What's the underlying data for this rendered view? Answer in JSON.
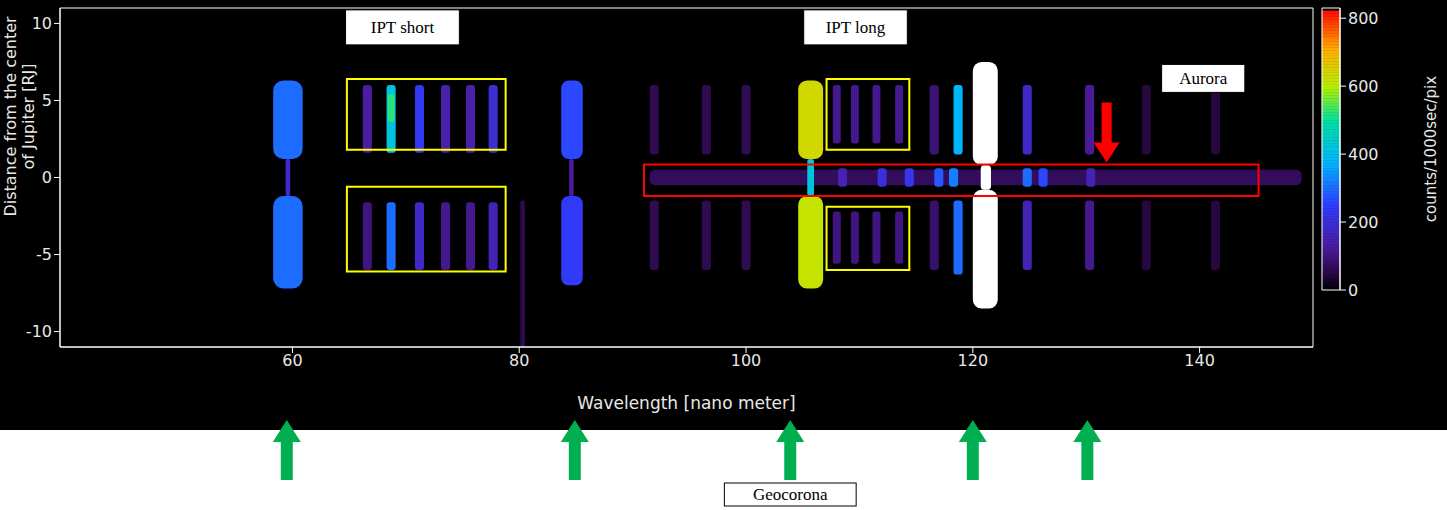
{
  "chart_data": {
    "type": "heatmap",
    "x_label": "Wavelength [nano meter]",
    "y_label": "Distance from the center of Jupiter [RJ]",
    "xlim": [
      39.5,
      150
    ],
    "xticks": [
      60,
      80,
      100,
      120,
      140
    ],
    "ylim": [
      -11,
      11
    ],
    "yticks": [
      -10,
      -5,
      0,
      5,
      10
    ],
    "colorbar": {
      "label": "counts/1000sec/pix",
      "range": [
        0,
        830
      ],
      "ticks": [
        0,
        200,
        400,
        600,
        800
      ]
    },
    "cells": [
      {
        "x": [
          91.5,
          149.0
        ],
        "y": [
          -0.5,
          0.5
        ],
        "value": 70
      },
      {
        "x": [
          58.3,
          60.9
        ],
        "y": [
          1.2,
          6.3
        ],
        "value": 300
      },
      {
        "x": [
          58.3,
          60.9
        ],
        "y": [
          -7.2,
          -1.2
        ],
        "value": 300
      },
      {
        "x": [
          59.4,
          59.8
        ],
        "y": [
          -1.2,
          1.2
        ],
        "value": 180
      },
      {
        "x": [
          66.2,
          67.0
        ],
        "y": [
          1.6,
          6.0
        ],
        "value": 130
      },
      {
        "x": [
          68.3,
          69.1
        ],
        "y": [
          1.6,
          6.0
        ],
        "value": 420
      },
      {
        "x": [
          70.8,
          71.6
        ],
        "y": [
          1.6,
          6.0
        ],
        "value": 230
      },
      {
        "x": [
          73.1,
          73.9
        ],
        "y": [
          1.6,
          6.0
        ],
        "value": 140
      },
      {
        "x": [
          75.3,
          76.1
        ],
        "y": [
          1.6,
          6.0
        ],
        "value": 140
      },
      {
        "x": [
          77.3,
          78.1
        ],
        "y": [
          1.6,
          6.0
        ],
        "value": 190
      },
      {
        "x": [
          66.2,
          67.0
        ],
        "y": [
          -6.0,
          -1.6
        ],
        "value": 100
      },
      {
        "x": [
          68.3,
          69.1
        ],
        "y": [
          -6.0,
          -1.6
        ],
        "value": 300
      },
      {
        "x": [
          70.8,
          71.6
        ],
        "y": [
          -6.0,
          -1.6
        ],
        "value": 180
      },
      {
        "x": [
          73.1,
          73.9
        ],
        "y": [
          -6.0,
          -1.6
        ],
        "value": 110
      },
      {
        "x": [
          75.3,
          76.1
        ],
        "y": [
          -6.0,
          -1.6
        ],
        "value": 110
      },
      {
        "x": [
          77.3,
          78.1
        ],
        "y": [
          -6.0,
          -1.6
        ],
        "value": 150
      },
      {
        "x": [
          68.4,
          69.0
        ],
        "y": [
          3.6,
          5.4
        ],
        "value": 520
      },
      {
        "x": [
          80.1,
          80.5
        ],
        "y": [
          -11,
          -1.5
        ],
        "value": 60
      },
      {
        "x": [
          83.7,
          85.6
        ],
        "y": [
          1.2,
          6.3
        ],
        "value": 260
      },
      {
        "x": [
          83.7,
          85.6
        ],
        "y": [
          -7.0,
          -1.2
        ],
        "value": 240
      },
      {
        "x": [
          84.4,
          84.8
        ],
        "y": [
          -1.2,
          1.2
        ],
        "value": 120
      },
      {
        "x": [
          91.5,
          92.3
        ],
        "y": [
          1.5,
          6.0
        ],
        "value": 60
      },
      {
        "x": [
          91.5,
          92.3
        ],
        "y": [
          -6.0,
          -1.5
        ],
        "value": 60
      },
      {
        "x": [
          96.1,
          96.9
        ],
        "y": [
          1.5,
          6.0
        ],
        "value": 60
      },
      {
        "x": [
          96.1,
          96.9
        ],
        "y": [
          -6.0,
          -1.5
        ],
        "value": 60
      },
      {
        "x": [
          99.6,
          100.4
        ],
        "y": [
          1.5,
          6.0
        ],
        "value": 60
      },
      {
        "x": [
          99.6,
          100.4
        ],
        "y": [
          -6.0,
          -1.5
        ],
        "value": 60
      },
      {
        "x": [
          104.6,
          106.8
        ],
        "y": [
          1.2,
          6.3
        ],
        "value": 640
      },
      {
        "x": [
          104.6,
          106.8
        ],
        "y": [
          -7.2,
          -1.2
        ],
        "value": 620
      },
      {
        "x": [
          105.4,
          106.0
        ],
        "y": [
          -1.2,
          1.2
        ],
        "value": 420
      },
      {
        "x": [
          107.65,
          108.35
        ],
        "y": [
          2.2,
          6.0
        ],
        "value": 110
      },
      {
        "x": [
          109.25,
          109.95
        ],
        "y": [
          2.2,
          6.0
        ],
        "value": 110
      },
      {
        "x": [
          111.15,
          111.85
        ],
        "y": [
          2.2,
          6.0
        ],
        "value": 110
      },
      {
        "x": [
          113.15,
          113.85
        ],
        "y": [
          2.2,
          6.0
        ],
        "value": 110
      },
      {
        "x": [
          107.65,
          108.35
        ],
        "y": [
          -5.6,
          -2.2
        ],
        "value": 100
      },
      {
        "x": [
          109.25,
          109.95
        ],
        "y": [
          -5.6,
          -2.2
        ],
        "value": 100
      },
      {
        "x": [
          111.15,
          111.85
        ],
        "y": [
          -5.6,
          -2.2
        ],
        "value": 100
      },
      {
        "x": [
          113.15,
          113.85
        ],
        "y": [
          -5.6,
          -2.2
        ],
        "value": 100
      },
      {
        "x": [
          116.2,
          117.0
        ],
        "y": [
          1.5,
          6.0
        ],
        "value": 90
      },
      {
        "x": [
          116.2,
          117.0
        ],
        "y": [
          -6.0,
          -1.5
        ],
        "value": 80
      },
      {
        "x": [
          118.3,
          119.1
        ],
        "y": [
          1.5,
          6.0
        ],
        "value": 380
      },
      {
        "x": [
          118.3,
          119.1
        ],
        "y": [
          -6.3,
          -1.5
        ],
        "value": 300
      },
      {
        "x": [
          120.0,
          122.2
        ],
        "y": [
          0.8,
          7.5
        ],
        "value": 1200
      },
      {
        "x": [
          120.0,
          122.2
        ],
        "y": [
          -8.5,
          -0.8
        ],
        "value": 1200
      },
      {
        "x": [
          120.7,
          121.6
        ],
        "y": [
          -0.8,
          0.8
        ],
        "value": 1000
      },
      {
        "x": [
          124.4,
          125.2
        ],
        "y": [
          1.5,
          6.0
        ],
        "value": 180
      },
      {
        "x": [
          124.4,
          125.2
        ],
        "y": [
          -6.0,
          -1.5
        ],
        "value": 150
      },
      {
        "x": [
          129.9,
          130.7
        ],
        "y": [
          1.5,
          6.0
        ],
        "value": 120
      },
      {
        "x": [
          129.9,
          130.7
        ],
        "y": [
          -6.0,
          -1.5
        ],
        "value": 110
      },
      {
        "x": [
          134.9,
          135.7
        ],
        "y": [
          1.5,
          6.0
        ],
        "value": 45
      },
      {
        "x": [
          134.9,
          135.7
        ],
        "y": [
          -6.0,
          -1.5
        ],
        "value": 45
      },
      {
        "x": [
          141.0,
          141.8
        ],
        "y": [
          1.5,
          6.0
        ],
        "value": 45
      },
      {
        "x": [
          141.0,
          141.8
        ],
        "y": [
          -6.0,
          -1.5
        ],
        "value": 45
      },
      {
        "x": [
          108.1,
          108.9
        ],
        "y": [
          -0.6,
          0.6
        ],
        "value": 150
      },
      {
        "x": [
          111.6,
          112.4
        ],
        "y": [
          -0.6,
          0.6
        ],
        "value": 200
      },
      {
        "x": [
          114.0,
          114.8
        ],
        "y": [
          -0.6,
          0.6
        ],
        "value": 220
      },
      {
        "x": [
          116.6,
          117.4
        ],
        "y": [
          -0.6,
          0.6
        ],
        "value": 280
      },
      {
        "x": [
          117.9,
          118.7
        ],
        "y": [
          -0.6,
          0.6
        ],
        "value": 320
      },
      {
        "x": [
          124.4,
          125.2
        ],
        "y": [
          -0.6,
          0.6
        ],
        "value": 300
      },
      {
        "x": [
          125.8,
          126.6
        ],
        "y": [
          -0.6,
          0.6
        ],
        "value": 260
      },
      {
        "x": [
          130.0,
          130.8
        ],
        "y": [
          -0.6,
          0.6
        ],
        "value": 150
      }
    ],
    "regions": [
      {
        "label": "IPT short",
        "color": "#ffff00",
        "boxes": [
          {
            "x": [
              64.8,
              78.8
            ],
            "y": [
              1.8,
              6.4
            ]
          },
          {
            "x": [
              64.8,
              78.8
            ],
            "y": [
              -6.1,
              -0.6
            ]
          }
        ]
      },
      {
        "label": "IPT long",
        "color": "#ffff00",
        "boxes": [
          {
            "x": [
              107.1,
              114.4
            ],
            "y": [
              1.8,
              6.4
            ]
          },
          {
            "x": [
              107.1,
              114.4
            ],
            "y": [
              -6.0,
              -1.9
            ]
          }
        ]
      },
      {
        "label": "Aurora",
        "color": "#ff0000",
        "boxes": [
          {
            "x": [
              91.0,
              145.2
            ],
            "y": [
              -1.2,
              0.85
            ]
          }
        ],
        "arrow_x": 131.8
      }
    ],
    "arrows": {
      "color": "#00b050",
      "items": [
        {
          "x": 59.5
        },
        {
          "x": 84.9
        },
        {
          "x": 103.9,
          "label": "Geocorona"
        },
        {
          "x": 120.0
        },
        {
          "x": 130.1
        }
      ]
    }
  }
}
